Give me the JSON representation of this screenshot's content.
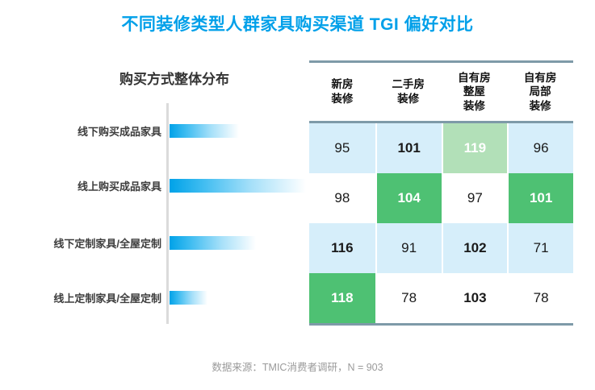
{
  "page": {
    "title": "不同装修类型人群家具购买渠道 TGI 偏好对比",
    "footer": "数据来源：TMIC消费者调研，N = 903"
  },
  "colors": {
    "title_blue": "#00A0E9",
    "bar_gradient_blue": "#00A2E8",
    "row_stripe_light_blue": "#D6EEFA",
    "highlight_green": "#4EC173",
    "highlight_light_green": "#B2E0B8",
    "table_border_slate": "#7E9AA8",
    "footer_gray": "#9A9A9A"
  },
  "table": {
    "headers": [
      "新房\n装修",
      "二手房\n装修",
      "自有房\n整屋\n装修",
      "自有房\n局部\n装修"
    ],
    "rows": [
      [
        "95",
        "101",
        "119",
        "96"
      ],
      [
        "98",
        "104",
        "97",
        "101"
      ],
      [
        "116",
        "91",
        "102",
        "71"
      ],
      [
        "118",
        "78",
        "103",
        "78"
      ]
    ]
  },
  "chart_data": [
    {
      "type": "bar",
      "orientation": "horizontal",
      "title": "购买方式整体分布",
      "categories": [
        "线下购买成品家具",
        "线上购买成品家具",
        "线下定制家具/全屋定制",
        "线上定制家具/全屋定制"
      ],
      "values": [
        33,
        65,
        41,
        18
      ],
      "values_note": "no numeric labels shown in image; values are relative bar lengths estimated in percent of chart width",
      "xlabel": "",
      "ylabel": "",
      "gridlines": false,
      "value_labels_shown": false,
      "bar_style": "solid blue fading to white toward the right"
    },
    {
      "type": "heatmap",
      "columns": [
        "新房装修",
        "二手房装修",
        "自有房整屋装修",
        "自有房局部装修"
      ],
      "rows": [
        "线下购买成品家具",
        "线上购买成品家具",
        "线下定制家具/全屋定制",
        "线上定制家具/全屋定制"
      ],
      "values": [
        [
          95,
          101,
          119,
          96
        ],
        [
          98,
          104,
          97,
          101
        ],
        [
          116,
          91,
          102,
          71
        ],
        [
          118,
          78,
          103,
          78
        ]
      ],
      "strong_green_cells": [
        [
          1,
          1
        ],
        [
          1,
          3
        ],
        [
          3,
          0
        ]
      ],
      "light_green_cells": [
        [
          0,
          2
        ]
      ],
      "bold_rule": "values over 100 are bold",
      "row_striping": [
        "light-blue",
        "white",
        "light-blue",
        "white"
      ]
    }
  ]
}
